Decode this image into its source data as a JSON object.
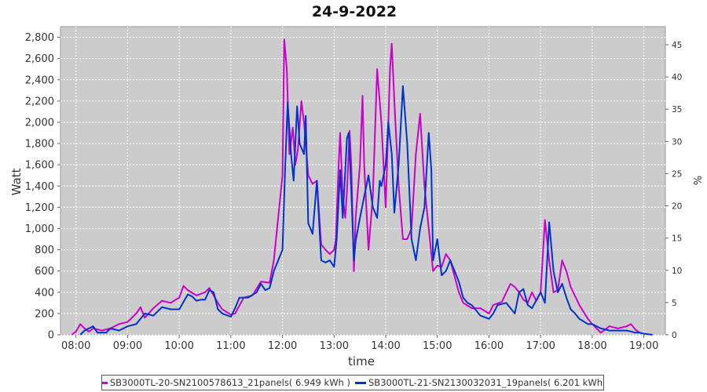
{
  "chart_data": {
    "type": "line",
    "title": "24-9-2022",
    "xlabel": "time",
    "ylabel": "Watt",
    "y2label": "%",
    "ylim": [
      0,
      2900
    ],
    "y2lim": [
      0,
      47.8
    ],
    "xlim": [
      "07:42",
      "19:25"
    ],
    "x_ticks": [
      "08:00",
      "09:00",
      "10:00",
      "11:00",
      "12:00",
      "13:00",
      "14:00",
      "15:00",
      "16:00",
      "17:00",
      "18:00",
      "19:00"
    ],
    "y_ticks": [
      "0",
      "200",
      "400",
      "600",
      "800",
      "1,000",
      "1,200",
      "1,400",
      "1,600",
      "1,800",
      "2,000",
      "2,200",
      "2,400",
      "2,600",
      "2,800"
    ],
    "y2_ticks": [
      "0",
      "5",
      "10",
      "15",
      "20",
      "25",
      "30",
      "35",
      "40",
      "45"
    ],
    "grid": true,
    "legend_position": "bottom",
    "series": [
      {
        "name": "SB3000TL-20-SN2100578613_21panels( 6.949 kWh )",
        "color": "#cc00cc",
        "points": [
          [
            "07:55",
            0
          ],
          [
            "08:00",
            30
          ],
          [
            "08:05",
            100
          ],
          [
            "08:10",
            60
          ],
          [
            "08:15",
            30
          ],
          [
            "08:20",
            60
          ],
          [
            "08:30",
            40
          ],
          [
            "08:40",
            60
          ],
          [
            "08:50",
            100
          ],
          [
            "09:00",
            120
          ],
          [
            "09:10",
            200
          ],
          [
            "09:15",
            260
          ],
          [
            "09:20",
            160
          ],
          [
            "09:30",
            250
          ],
          [
            "09:40",
            320
          ],
          [
            "09:50",
            300
          ],
          [
            "10:00",
            350
          ],
          [
            "10:05",
            460
          ],
          [
            "10:10",
            420
          ],
          [
            "10:20",
            370
          ],
          [
            "10:30",
            400
          ],
          [
            "10:35",
            440
          ],
          [
            "10:45",
            300
          ],
          [
            "10:50",
            240
          ],
          [
            "11:00",
            190
          ],
          [
            "11:05",
            200
          ],
          [
            "11:15",
            350
          ],
          [
            "11:25",
            370
          ],
          [
            "11:35",
            500
          ],
          [
            "11:45",
            490
          ],
          [
            "11:50",
            700
          ],
          [
            "12:00",
            1500
          ],
          [
            "12:02",
            2780
          ],
          [
            "12:05",
            2500
          ],
          [
            "12:08",
            1700
          ],
          [
            "12:12",
            1950
          ],
          [
            "12:15",
            1600
          ],
          [
            "12:18",
            1750
          ],
          [
            "12:22",
            2200
          ],
          [
            "12:25",
            2000
          ],
          [
            "12:30",
            1500
          ],
          [
            "12:35",
            1420
          ],
          [
            "12:40",
            1450
          ],
          [
            "12:45",
            850
          ],
          [
            "12:50",
            800
          ],
          [
            "12:55",
            760
          ],
          [
            "13:00",
            800
          ],
          [
            "13:02",
            900
          ],
          [
            "13:05",
            1550
          ],
          [
            "13:07",
            1900
          ],
          [
            "13:10",
            1300
          ],
          [
            "13:13",
            1100
          ],
          [
            "13:15",
            1350
          ],
          [
            "13:18",
            1920
          ],
          [
            "13:20",
            1600
          ],
          [
            "13:23",
            600
          ],
          [
            "13:25",
            1100
          ],
          [
            "13:30",
            1600
          ],
          [
            "13:33",
            2250
          ],
          [
            "13:35",
            1600
          ],
          [
            "13:40",
            800
          ],
          [
            "13:45",
            1300
          ],
          [
            "13:50",
            2500
          ],
          [
            "13:55",
            2000
          ],
          [
            "14:00",
            1200
          ],
          [
            "14:05",
            2500
          ],
          [
            "14:07",
            2740
          ],
          [
            "14:10",
            2200
          ],
          [
            "14:15",
            1400
          ],
          [
            "14:20",
            900
          ],
          [
            "14:25",
            900
          ],
          [
            "14:30",
            1000
          ],
          [
            "14:35",
            1700
          ],
          [
            "14:40",
            2080
          ],
          [
            "14:45",
            1400
          ],
          [
            "14:50",
            1000
          ],
          [
            "14:55",
            600
          ],
          [
            "15:00",
            650
          ],
          [
            "15:05",
            640
          ],
          [
            "15:10",
            760
          ],
          [
            "15:15",
            700
          ],
          [
            "15:20",
            550
          ],
          [
            "15:25",
            400
          ],
          [
            "15:30",
            300
          ],
          [
            "15:40",
            250
          ],
          [
            "15:50",
            250
          ],
          [
            "16:00",
            200
          ],
          [
            "16:05",
            280
          ],
          [
            "16:15",
            310
          ],
          [
            "16:25",
            480
          ],
          [
            "16:30",
            450
          ],
          [
            "16:35",
            400
          ],
          [
            "16:40",
            330
          ],
          [
            "16:45",
            300
          ],
          [
            "16:50",
            400
          ],
          [
            "16:55",
            320
          ],
          [
            "17:00",
            400
          ],
          [
            "17:05",
            1080
          ],
          [
            "17:10",
            700
          ],
          [
            "17:15",
            400
          ],
          [
            "17:20",
            420
          ],
          [
            "17:25",
            700
          ],
          [
            "17:30",
            600
          ],
          [
            "17:35",
            450
          ],
          [
            "17:45",
            280
          ],
          [
            "17:55",
            150
          ],
          [
            "18:00",
            100
          ],
          [
            "18:10",
            20
          ],
          [
            "18:20",
            80
          ],
          [
            "18:30",
            60
          ],
          [
            "18:40",
            80
          ],
          [
            "18:45",
            100
          ],
          [
            "18:50",
            50
          ],
          [
            "18:55",
            20
          ]
        ]
      },
      {
        "name": "SB3000TL-21-SN2130032031_19panels( 6.201 kWh )",
        "color": "#0033cc",
        "points": [
          [
            "08:05",
            0
          ],
          [
            "08:10",
            40
          ],
          [
            "08:20",
            80
          ],
          [
            "08:25",
            20
          ],
          [
            "08:35",
            20
          ],
          [
            "08:40",
            60
          ],
          [
            "08:50",
            40
          ],
          [
            "09:00",
            80
          ],
          [
            "09:10",
            100
          ],
          [
            "09:20",
            200
          ],
          [
            "09:30",
            180
          ],
          [
            "09:40",
            260
          ],
          [
            "09:50",
            240
          ],
          [
            "10:00",
            240
          ],
          [
            "10:10",
            380
          ],
          [
            "10:15",
            360
          ],
          [
            "10:20",
            320
          ],
          [
            "10:25",
            330
          ],
          [
            "10:30",
            330
          ],
          [
            "10:35",
            420
          ],
          [
            "10:40",
            400
          ],
          [
            "10:45",
            240
          ],
          [
            "10:50",
            200
          ],
          [
            "11:00",
            170
          ],
          [
            "11:05",
            250
          ],
          [
            "11:10",
            350
          ],
          [
            "11:20",
            350
          ],
          [
            "11:30",
            400
          ],
          [
            "11:35",
            480
          ],
          [
            "11:40",
            420
          ],
          [
            "11:45",
            440
          ],
          [
            "11:50",
            600
          ],
          [
            "12:00",
            800
          ],
          [
            "12:03",
            1550
          ],
          [
            "12:06",
            2190
          ],
          [
            "12:10",
            1700
          ],
          [
            "12:13",
            1450
          ],
          [
            "12:17",
            2150
          ],
          [
            "12:20",
            1800
          ],
          [
            "12:25",
            1700
          ],
          [
            "12:27",
            2060
          ],
          [
            "12:30",
            1050
          ],
          [
            "12:35",
            950
          ],
          [
            "12:40",
            1450
          ],
          [
            "12:45",
            700
          ],
          [
            "12:50",
            680
          ],
          [
            "12:55",
            700
          ],
          [
            "13:00",
            640
          ],
          [
            "13:03",
            900
          ],
          [
            "13:07",
            1550
          ],
          [
            "13:10",
            1100
          ],
          [
            "13:15",
            1850
          ],
          [
            "13:17",
            1900
          ],
          [
            "13:20",
            1350
          ],
          [
            "13:23",
            700
          ],
          [
            "13:25",
            880
          ],
          [
            "13:30",
            1100
          ],
          [
            "13:35",
            1300
          ],
          [
            "13:40",
            1500
          ],
          [
            "13:45",
            1200
          ],
          [
            "13:50",
            1100
          ],
          [
            "13:53",
            1450
          ],
          [
            "13:55",
            1400
          ],
          [
            "14:00",
            1600
          ],
          [
            "14:03",
            2000
          ],
          [
            "14:07",
            1700
          ],
          [
            "14:10",
            1150
          ],
          [
            "14:15",
            1600
          ],
          [
            "14:20",
            2340
          ],
          [
            "14:25",
            1800
          ],
          [
            "14:30",
            900
          ],
          [
            "14:35",
            700
          ],
          [
            "14:40",
            1000
          ],
          [
            "14:45",
            1200
          ],
          [
            "14:50",
            1900
          ],
          [
            "14:53",
            1550
          ],
          [
            "14:55",
            700
          ],
          [
            "15:00",
            900
          ],
          [
            "15:05",
            560
          ],
          [
            "15:10",
            600
          ],
          [
            "15:15",
            700
          ],
          [
            "15:20",
            600
          ],
          [
            "15:25",
            500
          ],
          [
            "15:30",
            350
          ],
          [
            "15:35",
            300
          ],
          [
            "15:40",
            280
          ],
          [
            "15:50",
            180
          ],
          [
            "16:00",
            150
          ],
          [
            "16:05",
            200
          ],
          [
            "16:10",
            280
          ],
          [
            "16:20",
            300
          ],
          [
            "16:30",
            200
          ],
          [
            "16:35",
            400
          ],
          [
            "16:40",
            430
          ],
          [
            "16:45",
            280
          ],
          [
            "16:50",
            250
          ],
          [
            "17:00",
            400
          ],
          [
            "17:05",
            300
          ],
          [
            "17:10",
            1060
          ],
          [
            "17:15",
            600
          ],
          [
            "17:20",
            400
          ],
          [
            "17:25",
            480
          ],
          [
            "17:30",
            350
          ],
          [
            "17:35",
            240
          ],
          [
            "17:40",
            200
          ],
          [
            "17:45",
            150
          ],
          [
            "17:55",
            100
          ],
          [
            "18:00",
            100
          ],
          [
            "18:10",
            60
          ],
          [
            "18:20",
            40
          ],
          [
            "18:30",
            40
          ],
          [
            "18:40",
            40
          ],
          [
            "18:45",
            30
          ],
          [
            "18:50",
            20
          ],
          [
            "18:55",
            20
          ],
          [
            "19:00",
            10
          ],
          [
            "19:10",
            0
          ]
        ]
      }
    ]
  }
}
